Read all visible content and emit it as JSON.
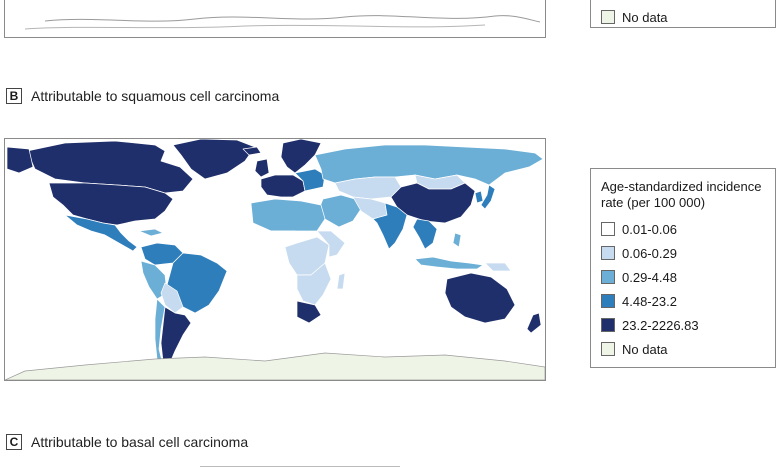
{
  "colors": {
    "c1": "#ffffff",
    "c2": "#c6dbef",
    "c3": "#6baed6",
    "c4": "#2f7ebc",
    "c5": "#1f2f6b",
    "nodata": "#eef4e6"
  },
  "panel_a": {
    "legend_items": [
      {
        "label": "No data",
        "color_key": "nodata"
      }
    ]
  },
  "panel_b": {
    "letter": "B",
    "title": "Attributable to squamous cell carcinoma",
    "legend_title": "Age-standardized incidence rate (per 100 000)",
    "legend_items": [
      {
        "label": "0.01-0.06",
        "color_key": "c1"
      },
      {
        "label": "0.06-0.29",
        "color_key": "c2"
      },
      {
        "label": "0.29-4.48",
        "color_key": "c3"
      },
      {
        "label": "4.48-23.2",
        "color_key": "c4"
      },
      {
        "label": "23.2-2226.83",
        "color_key": "c5"
      },
      {
        "label": "No data",
        "color_key": "nodata"
      }
    ]
  },
  "panel_c": {
    "letter": "C",
    "title": "Attributable to basal cell carcinoma"
  }
}
